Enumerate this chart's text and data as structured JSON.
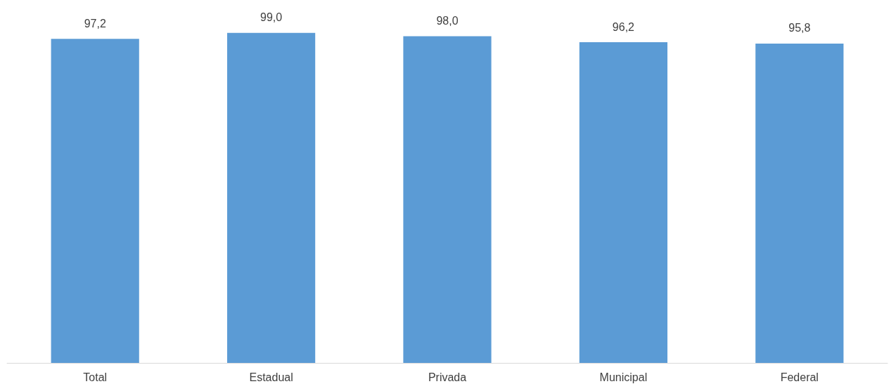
{
  "chart_data": {
    "type": "bar",
    "categories": [
      "Total",
      "Estadual",
      "Privada",
      "Municipal",
      "Federal"
    ],
    "values": [
      97.2,
      99.0,
      98.0,
      96.2,
      95.8
    ],
    "value_labels": [
      "97,2",
      "99,0",
      "98,0",
      "96,2",
      "95,8"
    ],
    "color": "#5b9bd5"
  }
}
